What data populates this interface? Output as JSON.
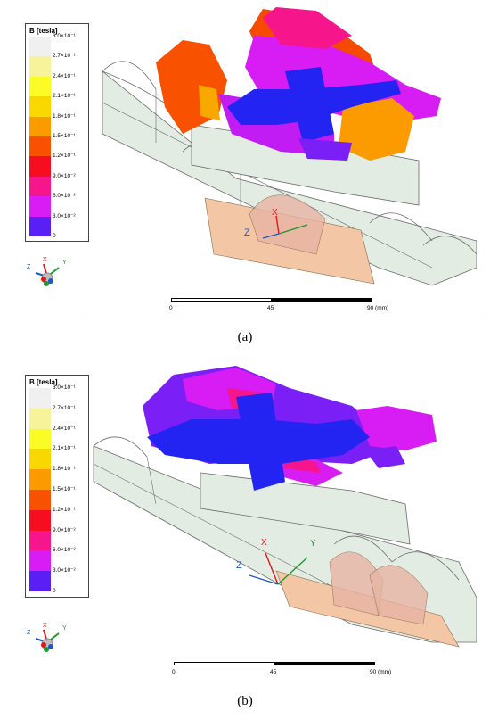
{
  "panels": [
    {
      "caption": "(a)",
      "legend": {
        "title": "B [tesla]",
        "ticks": [
          "3.0×10⁻¹",
          "2.7×10⁻¹",
          "2.4×10⁻¹",
          "2.1×10⁻¹",
          "1.8×10⁻¹",
          "1.5×10⁻¹",
          "1.2×10⁻¹",
          "9.0×10⁻²",
          "6.0×10⁻²",
          "3.0×10⁻²",
          "0"
        ]
      },
      "triad": {
        "x": "X",
        "y": "Y",
        "z": "Z"
      },
      "scale_bar": {
        "labels": [
          "0",
          "45",
          "90 (mm)"
        ]
      }
    },
    {
      "caption": "(b)",
      "legend": {
        "title": "B [tesla]",
        "ticks": [
          "3.0×10⁻¹",
          "2.7×10⁻¹",
          "2.4×10⁻¹",
          "2.1×10⁻¹",
          "1.8×10⁻¹",
          "1.5×10⁻¹",
          "1.2×10⁻¹",
          "9.0×10⁻²",
          "6.0×10⁻²",
          "3.0×10⁻²",
          "0"
        ]
      },
      "triad": {
        "x": "X",
        "y": "Y",
        "z": "Z"
      },
      "scale_bar": {
        "labels": [
          "0",
          "45",
          "90 (mm)"
        ]
      }
    }
  ],
  "colors": {
    "scale": [
      "#f0f0f0",
      "#f7f39a",
      "#fbfb25",
      "#f9d800",
      "#fb9b00",
      "#f85100",
      "#f60d20",
      "#f6158a",
      "#d81cf4",
      "#7a1ff5",
      "#1e1ef5"
    ],
    "guide_fill": "#e3ece3",
    "guide_stroke": "#6a6a6a",
    "copper_fill": "#f3c7a6",
    "axis_x": "#e01818",
    "axis_y": "#1d9a2a",
    "axis_z": "#1f56c8"
  }
}
